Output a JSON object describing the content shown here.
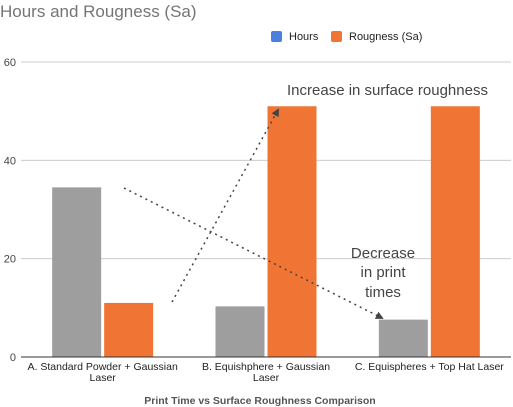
{
  "chart_data": {
    "type": "bar",
    "title": "Hours and Rougness (Sa)",
    "xlabel": "Print Time vs Surface Roughness Comparison",
    "ylabel": "",
    "ylim": [
      0,
      60
    ],
    "yticks": [
      0,
      20,
      40,
      60
    ],
    "grid": true,
    "legend": "top-right",
    "categories": [
      [
        "A. Standard Powder + Gaussian",
        "Laser"
      ],
      [
        "B. Equishphere + Gaussian",
        "Laser"
      ],
      [
        "C. Equispheres + Top Hat Laser"
      ]
    ],
    "series": [
      {
        "name": "Hours",
        "legend_color": "#4a7fe0",
        "bar_color": "#9e9e9e",
        "values": [
          34.5,
          10.3,
          7.6
        ]
      },
      {
        "name": "Rougness (Sa)",
        "legend_color": "#f07534",
        "bar_color": "#f07534",
        "values": [
          11,
          51,
          51
        ]
      }
    ],
    "annotations": [
      {
        "lines": [
          "Increase in surface roughness"
        ]
      },
      {
        "lines": [
          "Decrease",
          "in print",
          "times"
        ]
      }
    ]
  }
}
